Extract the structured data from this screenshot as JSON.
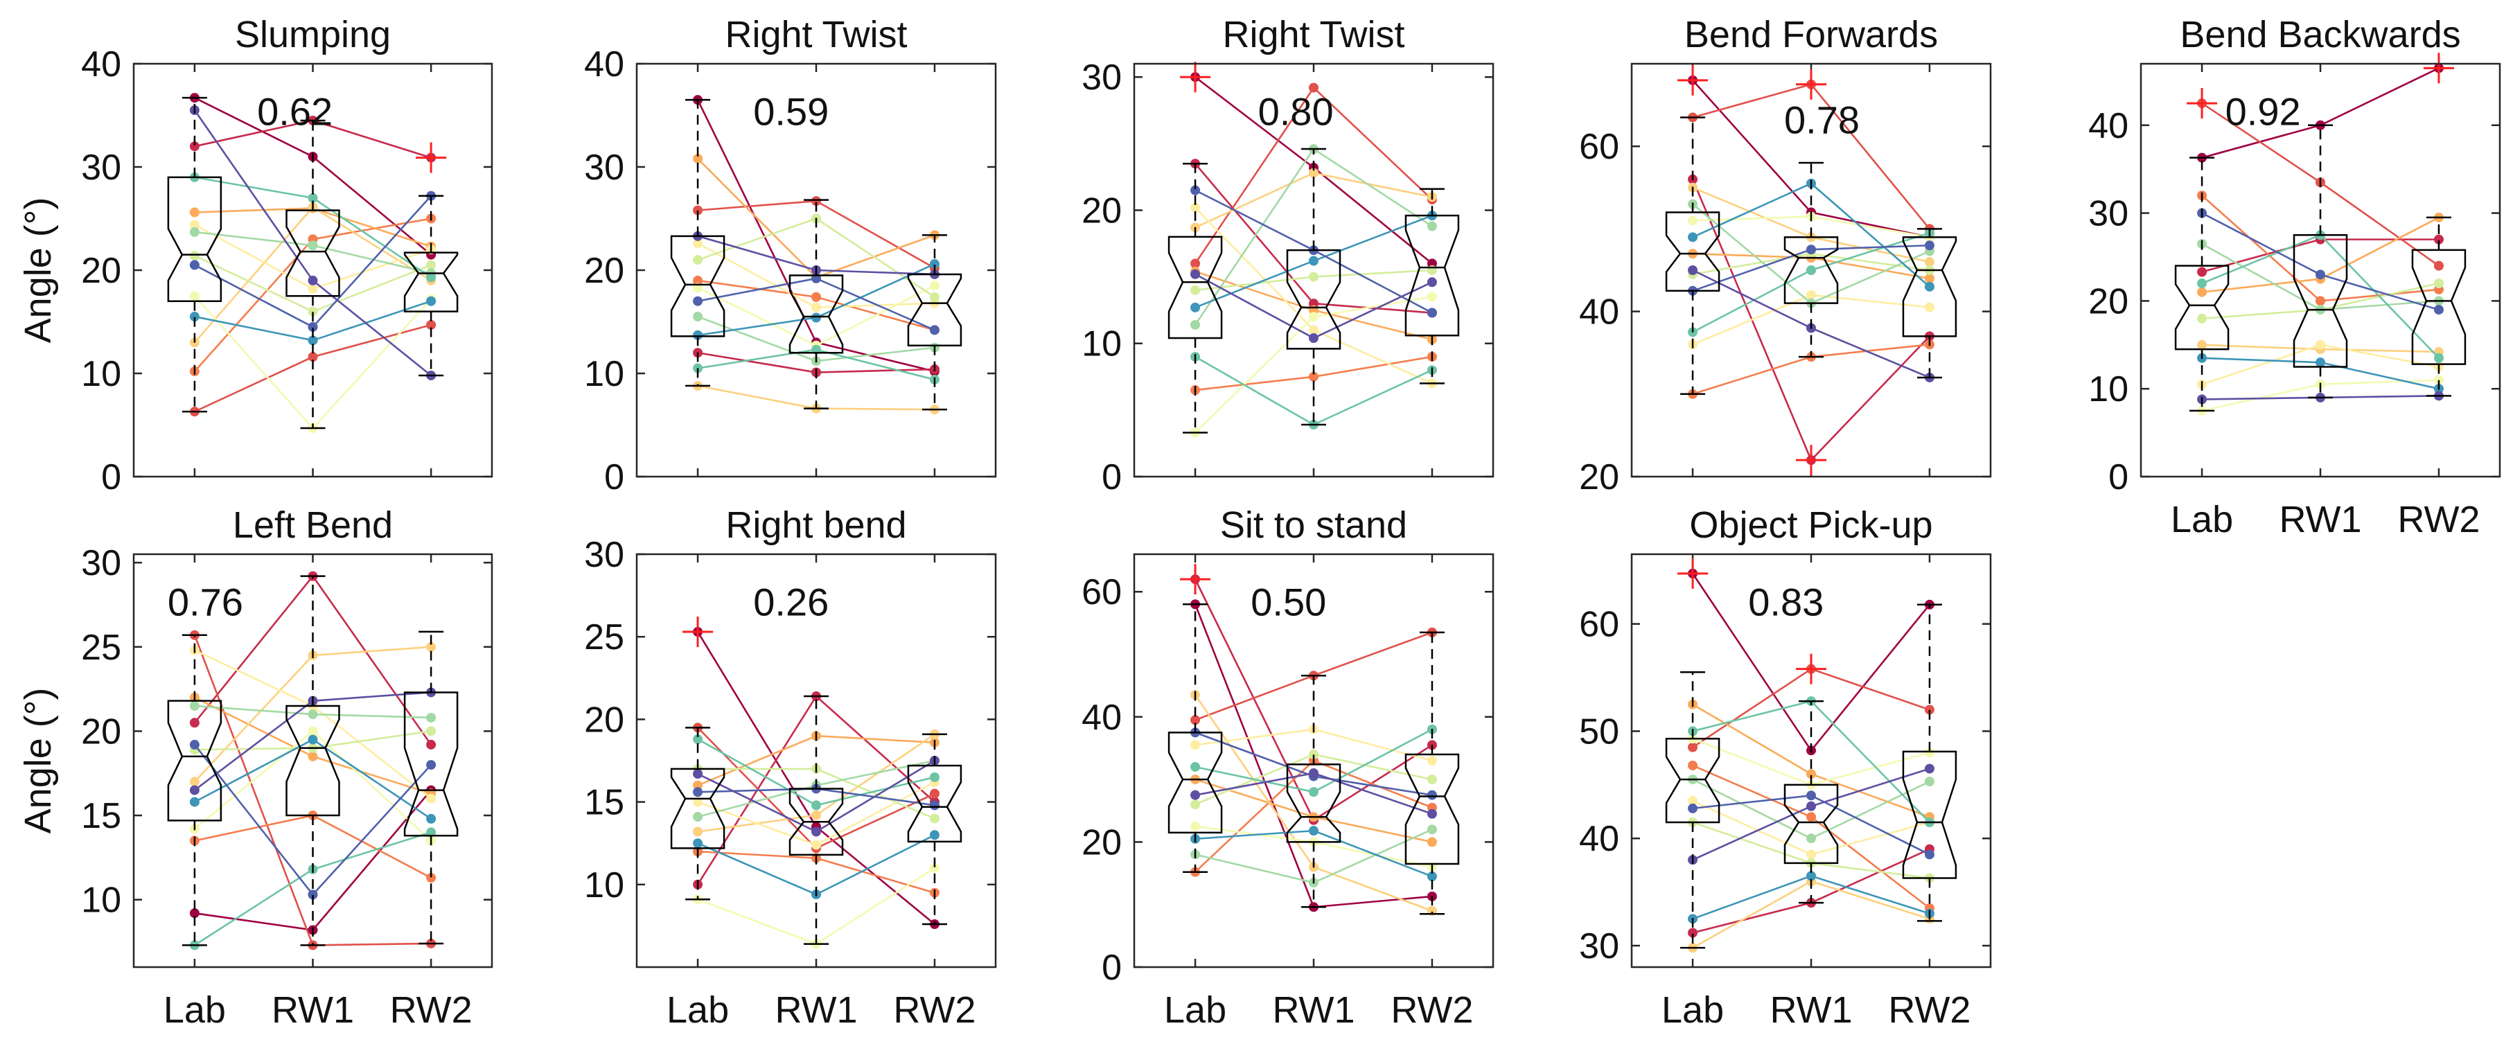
{
  "figure": {
    "ylabel": "Angle (°)",
    "xcategories": [
      "Lab",
      "RW1",
      "RW2"
    ]
  },
  "palette": [
    "#9e0142",
    "#c72a4c",
    "#e1504a",
    "#f47d4d",
    "#fbaa59",
    "#fdd07e",
    "#feeda1",
    "#f3fab0",
    "#d4ed9b",
    "#a3d9a4",
    "#6cc4a5",
    "#3d95b8",
    "#5061ab",
    "#5e4fa2"
  ],
  "chart_data": [
    {
      "type": "box",
      "title": "Slumping",
      "icc": "0.62",
      "ylim": [
        0,
        40
      ],
      "yticks": [
        0,
        10,
        20,
        30,
        40
      ],
      "show_ylabel": true,
      "show_xlabels": false,
      "boxes": [
        {
          "q1": 17,
          "median": 21.5,
          "q3": 29,
          "notch_lo": 19,
          "notch_hi": 24,
          "whisker_lo": 6.3,
          "whisker_hi": 36.7,
          "outliers": []
        },
        {
          "q1": 17.5,
          "median": 21.8,
          "q3": 25.8,
          "notch_lo": 19.3,
          "notch_hi": 24.2,
          "whisker_lo": 4.7,
          "whisker_hi": 34.5,
          "outliers": []
        },
        {
          "q1": 16,
          "median": 19.7,
          "q3": 21.7,
          "notch_lo": 17.5,
          "notch_hi": 21.5,
          "whisker_lo": 9.8,
          "whisker_hi": 27.2,
          "outliers": [
            30.9
          ]
        }
      ],
      "subjects": [
        [
          36.7,
          31,
          21.5
        ],
        [
          32,
          34.5,
          30.9
        ],
        [
          6.3,
          11.6,
          14.7
        ],
        [
          10.2,
          23,
          25
        ],
        [
          25.6,
          26,
          22.3
        ],
        [
          13,
          26.1,
          19
        ],
        [
          24.4,
          18.2,
          22
        ],
        [
          17.5,
          4.7,
          17.2
        ],
        [
          21.4,
          16,
          20.5
        ],
        [
          23.7,
          22.4,
          19.7
        ],
        [
          29,
          27,
          19.3
        ],
        [
          15.5,
          13.2,
          17
        ],
        [
          20.5,
          14.5,
          27.2
        ],
        [
          35.5,
          19,
          9.8
        ]
      ]
    },
    {
      "type": "box",
      "title": "Right Twist",
      "icc": "0.59",
      "ylim": [
        0,
        40
      ],
      "yticks": [
        0,
        10,
        20,
        30,
        40
      ],
      "show_ylabel": false,
      "show_xlabels": false,
      "boxes": [
        {
          "q1": 13.6,
          "median": 18.6,
          "q3": 23.3,
          "notch_lo": 16.1,
          "notch_hi": 21.2,
          "whisker_lo": 8.8,
          "whisker_hi": 36.5,
          "outliers": []
        },
        {
          "q1": 12,
          "median": 15.5,
          "q3": 19.5,
          "notch_lo": 12.8,
          "notch_hi": 18,
          "whisker_lo": 6.6,
          "whisker_hi": 26.8,
          "outliers": []
        },
        {
          "q1": 12.7,
          "median": 16.8,
          "q3": 19.6,
          "notch_lo": 14.6,
          "notch_hi": 19.2,
          "whisker_lo": 6.5,
          "whisker_hi": 23.4,
          "outliers": []
        }
      ],
      "subjects": [
        [
          36.5,
          13,
          10.2
        ],
        [
          12,
          10.1,
          10.4
        ],
        [
          25.8,
          26.7,
          20.2
        ],
        [
          19,
          17.4,
          14.2
        ],
        [
          30.8,
          19.3,
          23.4
        ],
        [
          8.8,
          6.6,
          6.5
        ],
        [
          22.6,
          16.4,
          16.8
        ],
        [
          18.3,
          12.7,
          18.5
        ],
        [
          21,
          25,
          17.4
        ],
        [
          15.5,
          11.2,
          12.5
        ],
        [
          10.5,
          12.3,
          9.4
        ],
        [
          13.7,
          15.4,
          20.6
        ],
        [
          17,
          19.2,
          14.2
        ],
        [
          23.3,
          20,
          19.6
        ]
      ]
    },
    {
      "type": "box",
      "title": "Right Twist",
      "icc": "0.80",
      "ylim": [
        0,
        31
      ],
      "yticks": [
        0,
        10,
        20,
        30
      ],
      "show_ylabel": false,
      "show_xlabels": false,
      "boxes": [
        {
          "q1": 10.4,
          "median": 14.6,
          "q3": 18,
          "notch_lo": 12.4,
          "notch_hi": 16.8,
          "whisker_lo": 3.3,
          "whisker_hi": 23.5,
          "outliers": [
            30
          ]
        },
        {
          "q1": 9.6,
          "median": 12.7,
          "q3": 17,
          "notch_lo": 10.8,
          "notch_hi": 14.6,
          "whisker_lo": 3.9,
          "whisker_hi": 24.6,
          "outliers": []
        },
        {
          "q1": 10.6,
          "median": 15.7,
          "q3": 19.6,
          "notch_lo": 12.5,
          "notch_hi": 18.5,
          "whisker_lo": 7,
          "whisker_hi": 21.6,
          "outliers": []
        }
      ],
      "subjects": [
        [
          30,
          23.2,
          16
        ],
        [
          23.5,
          13,
          12.3
        ],
        [
          16,
          29.2,
          20.8
        ],
        [
          6.5,
          7.5,
          9
        ],
        [
          15.4,
          12.5,
          10.3
        ],
        [
          18.7,
          22.8,
          21
        ],
        [
          20.2,
          11,
          7
        ],
        [
          3.3,
          12,
          13.5
        ],
        [
          14,
          15,
          15.5
        ],
        [
          11.4,
          24.6,
          18.8
        ],
        [
          9,
          3.9,
          8
        ],
        [
          12.7,
          16.2,
          19.6
        ],
        [
          21.5,
          17,
          12.3
        ],
        [
          15.2,
          10.4,
          14.6
        ]
      ]
    },
    {
      "type": "box",
      "title": "Bend Forwards",
      "icc": "0.78",
      "ylim": [
        20,
        70
      ],
      "yticks": [
        20,
        40,
        60
      ],
      "show_ylabel": false,
      "show_xlabels": false,
      "boxes": [
        {
          "q1": 42.5,
          "median": 47,
          "q3": 52,
          "notch_lo": 44.8,
          "notch_hi": 49.2,
          "whisker_lo": 30,
          "whisker_hi": 63.5,
          "outliers": [
            68
          ]
        },
        {
          "q1": 41,
          "median": 46.5,
          "q3": 49,
          "notch_lo": 43.4,
          "notch_hi": 47.5,
          "whisker_lo": 34.5,
          "whisker_hi": 58,
          "outliers": [
            67.5,
            22
          ]
        },
        {
          "q1": 37,
          "median": 45,
          "q3": 49,
          "notch_lo": 41.3,
          "notch_hi": 48.5,
          "whisker_lo": 32,
          "whisker_hi": 50,
          "outliers": []
        }
      ],
      "subjects": [
        [
          68,
          52,
          49
        ],
        [
          56,
          22,
          37
        ],
        [
          63.5,
          67.5,
          50
        ],
        [
          30,
          34.5,
          36
        ],
        [
          47,
          46.5,
          44
        ],
        [
          55,
          49,
          46
        ],
        [
          36,
          42,
          40.5
        ],
        [
          51,
          51.5,
          49
        ],
        [
          44.5,
          47,
          45
        ],
        [
          53,
          41,
          47.3
        ],
        [
          37.5,
          45,
          49.5
        ],
        [
          49,
          55.5,
          43
        ],
        [
          42.5,
          47.5,
          48
        ],
        [
          45,
          38,
          32
        ]
      ]
    },
    {
      "type": "box",
      "title": "Bend Backwards",
      "icc": "0.92",
      "ylim": [
        0,
        47
      ],
      "yticks": [
        0,
        10,
        20,
        30,
        40
      ],
      "show_ylabel": false,
      "show_xlabels": true,
      "boxes": [
        {
          "q1": 14.5,
          "median": 19.5,
          "q3": 24,
          "notch_lo": 16.8,
          "notch_hi": 21.9,
          "whisker_lo": 7.5,
          "whisker_hi": 36.3,
          "outliers": [
            42.5
          ]
        },
        {
          "q1": 12.5,
          "median": 19,
          "q3": 27.5,
          "notch_lo": 15.5,
          "notch_hi": 22.5,
          "whisker_lo": 9,
          "whisker_hi": 40,
          "outliers": []
        },
        {
          "q1": 12.8,
          "median": 20,
          "q3": 25.8,
          "notch_lo": 16.2,
          "notch_hi": 23.8,
          "whisker_lo": 9.2,
          "whisker_hi": 29.5,
          "outliers": [
            46.5
          ]
        }
      ],
      "subjects": [
        [
          36.3,
          40,
          46.5
        ],
        [
          23.3,
          27,
          27
        ],
        [
          42.5,
          33.5,
          24
        ],
        [
          32,
          20,
          21.3
        ],
        [
          21,
          22.5,
          29.5
        ],
        [
          15,
          14.5,
          14.2
        ],
        [
          10.5,
          15,
          12.5
        ],
        [
          7.5,
          10.5,
          11
        ],
        [
          18,
          19,
          22
        ],
        [
          26.5,
          19,
          20
        ],
        [
          22,
          27.5,
          13.5
        ],
        [
          13.5,
          13,
          10
        ],
        [
          30,
          23,
          19
        ],
        [
          8.8,
          9,
          9.2
        ]
      ]
    },
    {
      "type": "box",
      "title": "Left Bend",
      "icc": "0.76",
      "ylim": [
        6,
        30.5
      ],
      "yticks": [
        10,
        15,
        20,
        25,
        30
      ],
      "show_ylabel": true,
      "show_xlabels": true,
      "boxes": [
        {
          "q1": 14.7,
          "median": 18.5,
          "q3": 21.8,
          "notch_lo": 16.8,
          "notch_hi": 20.5,
          "whisker_lo": 7.3,
          "whisker_hi": 25.7,
          "outliers": []
        },
        {
          "q1": 15,
          "median": 19,
          "q3": 21.5,
          "notch_lo": 17,
          "notch_hi": 20.7,
          "whisker_lo": 7.3,
          "whisker_hi": 29.2,
          "outliers": []
        },
        {
          "q1": 13.8,
          "median": 16.5,
          "q3": 22.3,
          "notch_lo": 14.2,
          "notch_hi": 19,
          "whisker_lo": 7.4,
          "whisker_hi": 25.9,
          "outliers": []
        }
      ],
      "subjects": [
        [
          9.2,
          8.2,
          16.5
        ],
        [
          20.5,
          29.2,
          19.2
        ],
        [
          25.7,
          7.3,
          7.4
        ],
        [
          13.5,
          15,
          11.3
        ],
        [
          22,
          18.5,
          16.3
        ],
        [
          17,
          24.5,
          25
        ],
        [
          24.8,
          21.5,
          16
        ],
        [
          14.2,
          20,
          13.5
        ],
        [
          18.9,
          19,
          20
        ],
        [
          21.5,
          21,
          20.8
        ],
        [
          7.3,
          11.8,
          14
        ],
        [
          15.8,
          19.5,
          14.8
        ],
        [
          19.2,
          10.3,
          18
        ],
        [
          16.5,
          21.8,
          22.3
        ]
      ]
    },
    {
      "type": "box",
      "title": "Right bend",
      "icc": "0.26",
      "ylim": [
        5,
        30
      ],
      "yticks": [
        10,
        15,
        20,
        25,
        30
      ],
      "show_ylabel": false,
      "show_xlabels": true,
      "boxes": [
        {
          "q1": 12.2,
          "median": 15.2,
          "q3": 17,
          "notch_lo": 13.5,
          "notch_hi": 16.5,
          "whisker_lo": 9.1,
          "whisker_hi": 19.5,
          "outliers": [
            25.3
          ]
        },
        {
          "q1": 11.8,
          "median": 13.8,
          "q3": 15.8,
          "notch_lo": 12.7,
          "notch_hi": 14.9,
          "whisker_lo": 6.4,
          "whisker_hi": 21.4,
          "outliers": []
        },
        {
          "q1": 12.6,
          "median": 14.7,
          "q3": 17.2,
          "notch_lo": 13.2,
          "notch_hi": 16.2,
          "whisker_lo": 7.6,
          "whisker_hi": 19.1,
          "outliers": []
        }
      ],
      "subjects": [
        [
          25.3,
          13.5,
          7.6
        ],
        [
          10,
          21.4,
          15
        ],
        [
          19.5,
          12.2,
          15.5
        ],
        [
          12,
          11.6,
          9.5
        ],
        [
          16,
          19,
          18.6
        ],
        [
          13.2,
          14.2,
          19.1
        ],
        [
          15,
          12.4,
          16.2
        ],
        [
          9.1,
          6.4,
          11
        ],
        [
          17,
          17,
          14
        ],
        [
          14.1,
          16,
          17.5
        ],
        [
          18.8,
          14.8,
          16.5
        ],
        [
          12.5,
          9.4,
          13
        ],
        [
          15.6,
          15.8,
          14.8
        ],
        [
          16.7,
          13.2,
          17.5
        ]
      ]
    },
    {
      "type": "box",
      "title": "Sit to stand",
      "icc": "0.50",
      "ylim": [
        0,
        66
      ],
      "yticks": [
        0,
        20,
        40,
        60
      ],
      "show_ylabel": false,
      "show_xlabels": true,
      "boxes": [
        {
          "q1": 21.5,
          "median": 30,
          "q3": 37.5,
          "notch_lo": 25.7,
          "notch_hi": 34.3,
          "whisker_lo": 15.2,
          "whisker_hi": 58,
          "outliers": [
            62
          ]
        },
        {
          "q1": 20,
          "median": 24,
          "q3": 32.4,
          "notch_lo": 21.5,
          "notch_hi": 28,
          "whisker_lo": 9.6,
          "whisker_hi": 46.6,
          "outliers": []
        },
        {
          "q1": 16.5,
          "median": 27.3,
          "q3": 34,
          "notch_lo": 22.8,
          "notch_hi": 31.8,
          "whisker_lo": 8.5,
          "whisker_hi": 53.5,
          "outliers": []
        }
      ],
      "subjects": [
        [
          58,
          9.6,
          11.3
        ],
        [
          62,
          23.5,
          35.5
        ],
        [
          39.5,
          46.6,
          53.5
        ],
        [
          15.2,
          33,
          25.5
        ],
        [
          30,
          24,
          20
        ],
        [
          43.5,
          16,
          9
        ],
        [
          35.5,
          38,
          33
        ],
        [
          22.5,
          20,
          16
        ],
        [
          26,
          34,
          30
        ],
        [
          18,
          13.5,
          22
        ],
        [
          32,
          28,
          38
        ],
        [
          20.5,
          21.8,
          14.5
        ],
        [
          37.5,
          30.5,
          27.5
        ],
        [
          27.5,
          31,
          24.5
        ]
      ]
    },
    {
      "type": "box",
      "title": "Object Pick-up",
      "icc": "0.83",
      "ylim": [
        28,
        66.5
      ],
      "yticks": [
        30,
        40,
        50,
        60
      ],
      "show_ylabel": false,
      "show_xlabels": true,
      "boxes": [
        {
          "q1": 41.5,
          "median": 45.5,
          "q3": 49.3,
          "notch_lo": 43.3,
          "notch_hi": 47.6,
          "whisker_lo": 29.8,
          "whisker_hi": 55.5,
          "outliers": [
            64.7
          ]
        },
        {
          "q1": 37.7,
          "median": 41.5,
          "q3": 45,
          "notch_lo": 39.4,
          "notch_hi": 43.1,
          "whisker_lo": 34,
          "whisker_hi": 52.8,
          "outliers": [
            55.8
          ]
        },
        {
          "q1": 36.3,
          "median": 41.5,
          "q3": 48.1,
          "notch_lo": 37.5,
          "notch_hi": 45.5,
          "whisker_lo": 32.3,
          "whisker_hi": 61.8,
          "outliers": []
        }
      ],
      "subjects": [
        [
          64.7,
          48.2,
          61.8
        ],
        [
          31.2,
          34,
          39
        ],
        [
          48.5,
          55.8,
          52
        ],
        [
          46.8,
          42,
          33.5
        ],
        [
          52.5,
          46,
          42
        ],
        [
          29.8,
          36,
          32.5
        ],
        [
          43.5,
          38.5,
          41.5
        ],
        [
          49.3,
          45,
          48
        ],
        [
          41.5,
          37.7,
          36.3
        ],
        [
          45.5,
          40,
          45.3
        ],
        [
          50,
          52.8,
          41.5
        ],
        [
          32.5,
          36.5,
          33
        ],
        [
          42.8,
          44,
          38.5
        ],
        [
          38,
          43,
          46.5
        ]
      ]
    }
  ]
}
